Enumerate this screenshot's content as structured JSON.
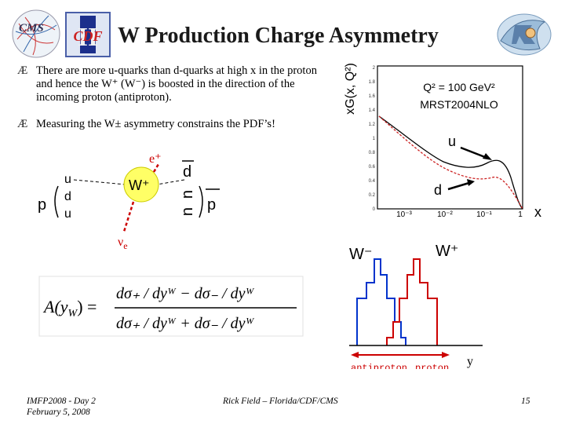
{
  "title": "W Production Charge Asymmetry",
  "bullets": [
    "There are more u-quarks than d-quarks at high x in the proton and hence the W⁺ (W⁻) is boosted in the direction of the incoming proton (antiproton).",
    "Measuring the W± asymmetry constrains the PDF’s!"
  ],
  "bullet_mark": "Æ",
  "logos": {
    "cms": "CMS",
    "cdf": "CDF",
    "cdf_roman": "II"
  },
  "pdf_plot": {
    "ylabel": "xG(x, Q²)",
    "q2_label": "Q² = 100 GeV²",
    "pdf_set": "MRST2004NLO",
    "u_label": "u",
    "d_label": "d",
    "xlabel": "x",
    "xticks": [
      "10⁻³",
      "10⁻²",
      "10⁻¹",
      "1"
    ],
    "yticks": [
      "2",
      "1.8",
      "1.6",
      "1.4",
      "1.2",
      "1",
      "0.8",
      "0.6",
      "0.4",
      "0.2",
      "0"
    ],
    "colors": {
      "u": "#000000",
      "d": "#cc2222"
    }
  },
  "diagram": {
    "p_left": "p",
    "quarks_left": [
      "u",
      "d",
      "u"
    ],
    "w_label": "W⁺",
    "positron": "e⁺",
    "neutrino": "ν",
    "neutrino_sub": "e",
    "d_bar": "d",
    "quarks_right": [
      "u",
      "u"
    ],
    "p_bar": "p",
    "w_color": "#ffff66"
  },
  "formula": {
    "lhs": "A(y",
    "lhs_sub": "W",
    "lhs_end": ") =",
    "numerator": "dσ₊ / dyᵂ − dσ₋ / dyᵂ",
    "denominator": "dσ₊ / dyᵂ + dσ₋ / dyᵂ"
  },
  "rapidity": {
    "w_minus": "W⁻",
    "w_plus": "W⁺",
    "antiproton": "antiproton",
    "proton": "proton",
    "ylabel": "y",
    "colors": {
      "w_minus": "#0033cc",
      "w_plus": "#cc0000",
      "arrow": "#cc0000"
    }
  },
  "footer": {
    "conf_line1": "IMFP2008 - Day 2",
    "conf_line2": "February 5, 2008",
    "author": "Rick Field – Florida/CDF/CMS",
    "page": "15"
  }
}
